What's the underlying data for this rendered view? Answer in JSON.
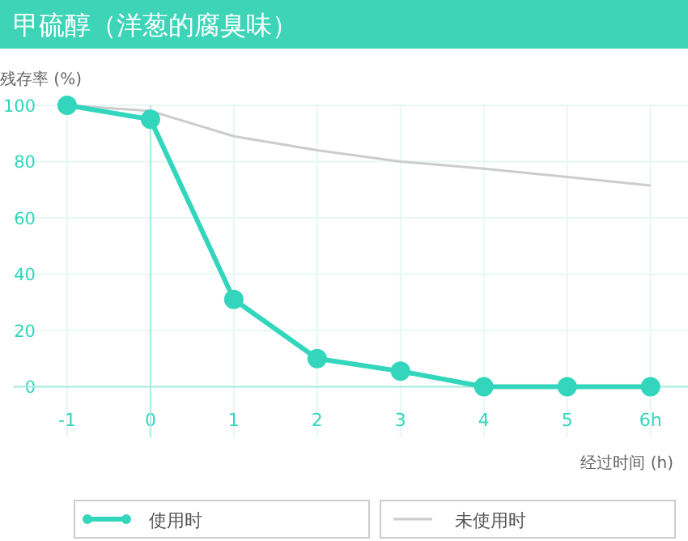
{
  "chart_data": {
    "type": "line",
    "title": "甲硫醇（洋葱的腐臭味）",
    "ylabel": "残存率 (%)",
    "xlabel": "经过时间 (h)",
    "x": [
      -1,
      0,
      1,
      2,
      3,
      4,
      5,
      6
    ],
    "series": [
      {
        "name": "使用时",
        "color": "#33d6bc",
        "values": [
          100,
          95,
          31,
          10,
          5.5,
          0,
          0,
          0
        ],
        "marker": "circle"
      },
      {
        "name": "未使用时",
        "color": "#cccccc",
        "values": [
          100,
          98,
          89,
          84,
          80,
          77.5,
          74.5,
          71.5
        ],
        "marker": "none"
      }
    ],
    "xlim": [
      -1.65,
      6.45
    ],
    "ylim": [
      -18,
      100
    ],
    "xticks": [
      -1,
      0,
      1,
      2,
      3,
      4,
      5,
      {
        "value": 6,
        "label": "6h"
      }
    ],
    "yticks": [
      0,
      20,
      40,
      60,
      80,
      100
    ],
    "ref_lines": [
      {
        "axis": "x",
        "value": 0,
        "color": "#a8ece0"
      }
    ],
    "grid": true,
    "legend": "bottom",
    "line_style": "solid"
  }
}
